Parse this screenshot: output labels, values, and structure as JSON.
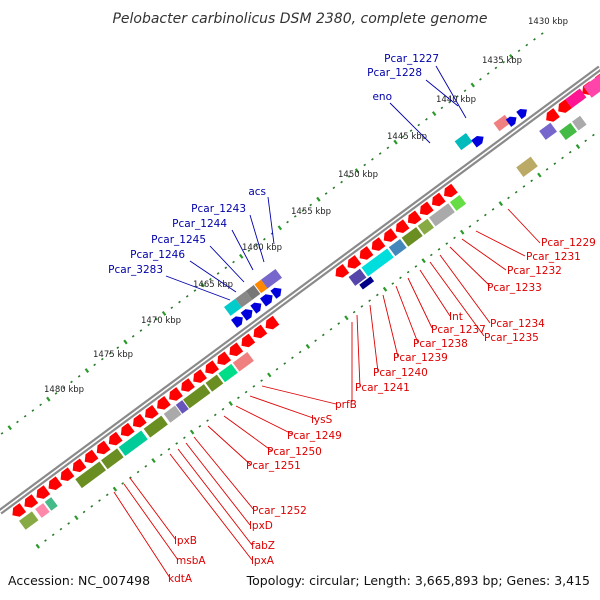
{
  "title": "Pelobacter carbinolicus DSM 2380, complete genome",
  "footer": {
    "accession": "Accession: NC_007498",
    "topology": "Topology: circular; Length: 3,665,893 bp; Genes: 3,415"
  },
  "colors": {
    "backbone": "#8a8a8a",
    "tick_major": "#22aa22",
    "tick_minor": "#2a7a2a",
    "label_forward": "#0000aa",
    "label_reverse": "#dd0000",
    "scale_text": "#222222"
  },
  "scale_labels": [
    "1430 kbp",
    "1435 kbp",
    "1440 kbp",
    "1445 kbp",
    "1450 kbp",
    "1455 kbp",
    "1460 kbp",
    "1465 kbp",
    "1470 kbp",
    "1475 kbp",
    "1480 kbp"
  ],
  "labels_forward": [
    "Pcar_1227",
    "Pcar_1228",
    "eno",
    "acs",
    "Pcar_1243",
    "Pcar_1244",
    "Pcar_1245",
    "Pcar_1246",
    "Pcar_3283"
  ],
  "labels_reverse": [
    "Pcar_1229",
    "Pcar_1231",
    "Pcar_1232",
    "Pcar_1233",
    "Pcar_1234",
    "Pcar_1235",
    "Int",
    "Pcar_1237",
    "Pcar_1238",
    "Pcar_1239",
    "Pcar_1240",
    "Pcar_1241",
    "prfB",
    "lysS",
    "Pcar_1249",
    "Pcar_1250",
    "Pcar_1251",
    "Pcar_1252",
    "lpxD",
    "fabZ",
    "lpxA",
    "lpxB",
    "msbA",
    "kdtA"
  ]
}
